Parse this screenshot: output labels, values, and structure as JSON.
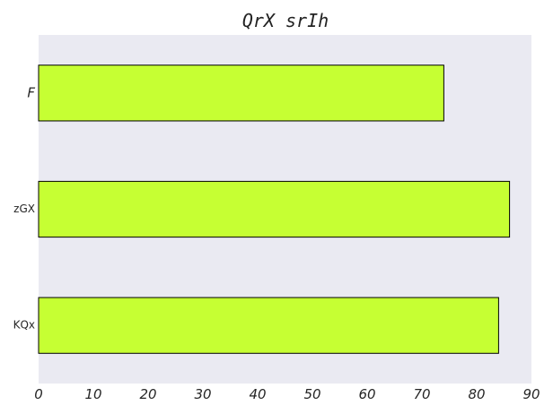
{
  "chart_data": {
    "type": "bar",
    "orientation": "horizontal",
    "title": "QrX srIh",
    "xlabel": "",
    "ylabel": "",
    "categories": [
      "F",
      "zGX",
      "KQx"
    ],
    "values": [
      74,
      86,
      84
    ],
    "xlim": [
      0,
      90
    ],
    "x_ticks": [
      0,
      10,
      20,
      30,
      40,
      50,
      60,
      70,
      80,
      90
    ],
    "grid": false,
    "legend": "none",
    "colors": {
      "bar_fill": "#c6ff33",
      "bar_edge": "#000000",
      "plot_background": "#eaeaf2"
    }
  }
}
